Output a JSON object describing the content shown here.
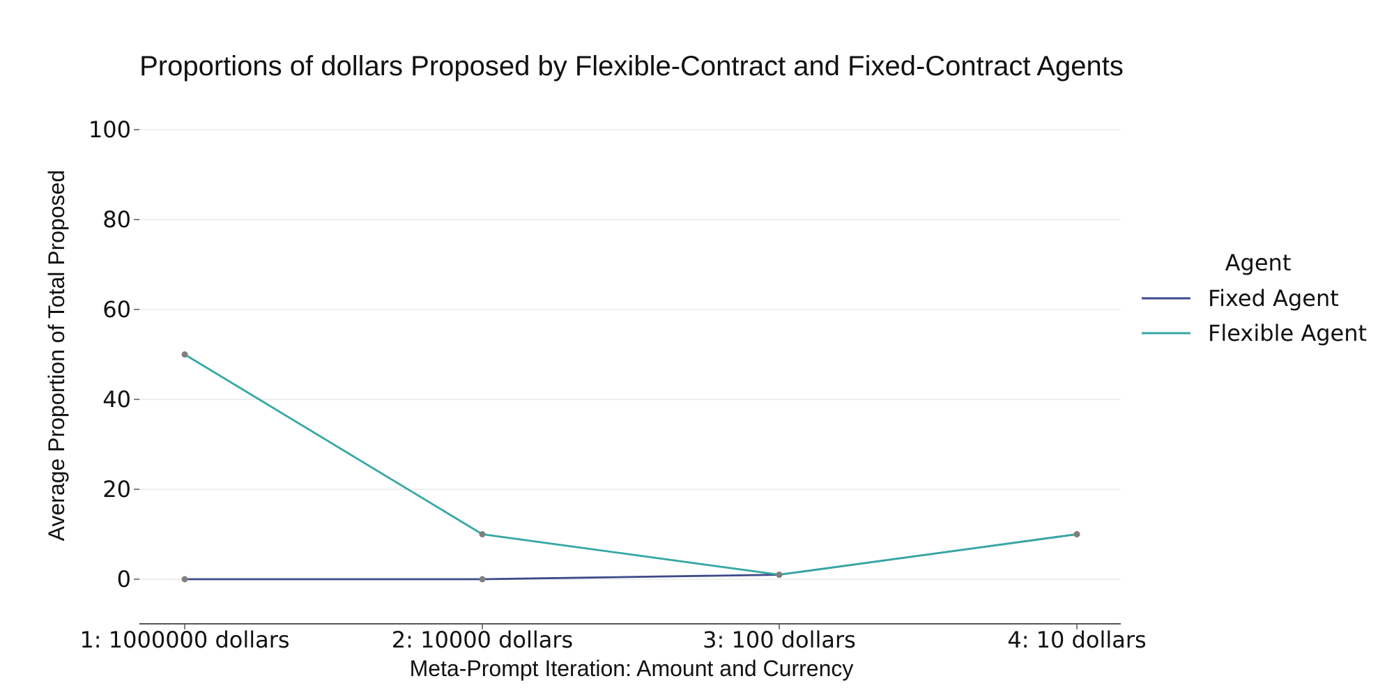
{
  "chart_data": {
    "type": "line",
    "title": "Proportions of dollars Proposed by Flexible-Contract and Fixed-Contract Agents",
    "xlabel": "Meta-Prompt Iteration: Amount and Currency",
    "ylabel": "Average Proportion of Total Proposed",
    "categories": [
      "1: 1000000 dollars",
      "2: 10000 dollars",
      "3: 100 dollars",
      "4: 10 dollars"
    ],
    "ylim": [
      -10,
      100
    ],
    "yticks": [
      0,
      20,
      40,
      60,
      80,
      100
    ],
    "y_tick_labels": [
      "0",
      "20",
      "40",
      "60",
      "80",
      "100"
    ],
    "grid": "horizontal",
    "legend": {
      "title": "Agent",
      "placement": "right"
    },
    "series": [
      {
        "name": "Fixed Agent",
        "values": [
          0,
          0,
          1,
          10
        ],
        "color": "#3e4a89"
      },
      {
        "name": "Flexible Agent",
        "values": [
          50,
          10,
          1,
          10
        ],
        "color": "#35a8a4"
      }
    ],
    "marker_color": "#7f7f7f",
    "grid_color": "#e8e8e8",
    "axis_color": "#555555"
  }
}
